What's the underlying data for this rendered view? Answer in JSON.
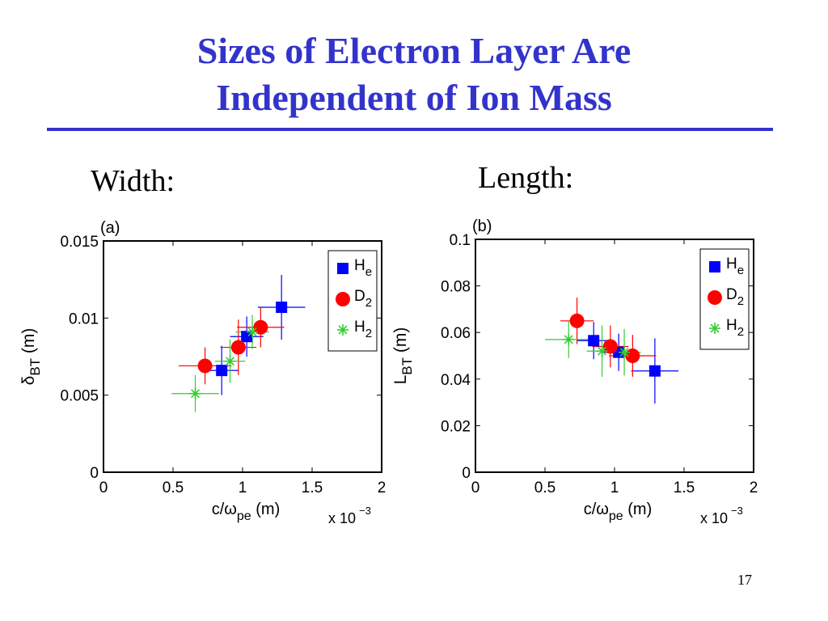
{
  "slide": {
    "title_line1": "Sizes of Electron Layer Are",
    "title_line2": "Independent of Ion Mass",
    "label_left": "Width:",
    "label_right": "Length:",
    "page_number": "17"
  },
  "chart_data": [
    {
      "type": "scatter",
      "panel_label": "(a)",
      "xlabel": {
        "main": "c/ω",
        "sub": "pe",
        "unit": " (m)"
      },
      "ylabel": {
        "main": "δ",
        "sub": "BT",
        "unit": " (m)"
      },
      "x_multiplier": "x 10",
      "x_multiplier_exp": "−3",
      "xlim": [
        0,
        2
      ],
      "ylim": [
        0,
        0.015
      ],
      "xticks": [
        0,
        0.5,
        1,
        1.5,
        2
      ],
      "xticklabels": [
        "0",
        "0.5",
        "1",
        "1.5",
        "2"
      ],
      "yticks": [
        0,
        0.005,
        0.01,
        0.015
      ],
      "yticklabels": [
        "0",
        "0.005",
        "0.01",
        "0.015"
      ],
      "legend_position": "top-right",
      "series": [
        {
          "name": "H",
          "name_sub": "e",
          "marker": "square",
          "color": "#0000ff",
          "points": [
            {
              "x": 0.85,
              "y": 0.0066,
              "xerr": 0.12,
              "yerr": 0.0016
            },
            {
              "x": 1.03,
              "y": 0.0088,
              "xerr": 0.12,
              "yerr": 0.0013
            },
            {
              "x": 1.28,
              "y": 0.0107,
              "xerr": 0.17,
              "yerr": 0.0021
            }
          ]
        },
        {
          "name": "D",
          "name_sub": "2",
          "marker": "circle",
          "color": "#ff0000",
          "points": [
            {
              "x": 0.73,
              "y": 0.0069,
              "xerr": 0.19,
              "yerr": 0.0012
            },
            {
              "x": 0.97,
              "y": 0.0081,
              "xerr": 0.13,
              "yerr": 0.0018
            },
            {
              "x": 1.13,
              "y": 0.0094,
              "xerr": 0.17,
              "yerr": 0.0013
            }
          ]
        },
        {
          "name": "H",
          "name_sub": "2",
          "marker": "asterisk",
          "color": "#33cc33",
          "points": [
            {
              "x": 0.66,
              "y": 0.0051,
              "xerr": 0.17,
              "yerr": 0.0012
            },
            {
              "x": 0.91,
              "y": 0.0072,
              "xerr": 0.11,
              "yerr": 0.0014
            },
            {
              "x": 1.07,
              "y": 0.0091,
              "xerr": 0.12,
              "yerr": 0.0011
            }
          ]
        }
      ]
    },
    {
      "type": "scatter",
      "panel_label": "(b)",
      "xlabel": {
        "main": "c/ω",
        "sub": "pe",
        "unit": " (m)"
      },
      "ylabel": {
        "main": "L",
        "sub": "BT",
        "unit": " (m)"
      },
      "x_multiplier": "x 10",
      "x_multiplier_exp": "−3",
      "xlim": [
        0,
        2
      ],
      "ylim": [
        0,
        0.1
      ],
      "xticks": [
        0,
        0.5,
        1,
        1.5,
        2
      ],
      "xticklabels": [
        "0",
        "0.5",
        "1",
        "1.5",
        "2"
      ],
      "yticks": [
        0,
        0.02,
        0.04,
        0.06,
        0.08,
        0.1
      ],
      "yticklabels": [
        "0",
        "0.02",
        "0.04",
        "0.06",
        "0.08",
        "0.1"
      ],
      "legend_position": "top-right",
      "series": [
        {
          "name": "H",
          "name_sub": "e",
          "marker": "square",
          "color": "#0000ff",
          "points": [
            {
              "x": 0.85,
              "y": 0.0565,
              "xerr": 0.12,
              "yerr": 0.008
            },
            {
              "x": 1.03,
              "y": 0.0515,
              "xerr": 0.12,
              "yerr": 0.008
            },
            {
              "x": 1.29,
              "y": 0.0435,
              "xerr": 0.17,
              "yerr": 0.014
            }
          ]
        },
        {
          "name": "D",
          "name_sub": "2",
          "marker": "circle",
          "color": "#ff0000",
          "points": [
            {
              "x": 0.73,
              "y": 0.065,
              "xerr": 0.12,
              "yerr": 0.01
            },
            {
              "x": 0.97,
              "y": 0.054,
              "xerr": 0.13,
              "yerr": 0.009
            },
            {
              "x": 1.13,
              "y": 0.05,
              "xerr": 0.17,
              "yerr": 0.009
            }
          ]
        },
        {
          "name": "H",
          "name_sub": "2",
          "marker": "asterisk",
          "color": "#33cc33",
          "points": [
            {
              "x": 0.67,
              "y": 0.057,
              "xerr": 0.17,
              "yerr": 0.008
            },
            {
              "x": 0.91,
              "y": 0.052,
              "xerr": 0.11,
              "yerr": 0.011
            },
            {
              "x": 1.07,
              "y": 0.0515,
              "xerr": 0.12,
              "yerr": 0.01
            }
          ]
        }
      ]
    }
  ]
}
